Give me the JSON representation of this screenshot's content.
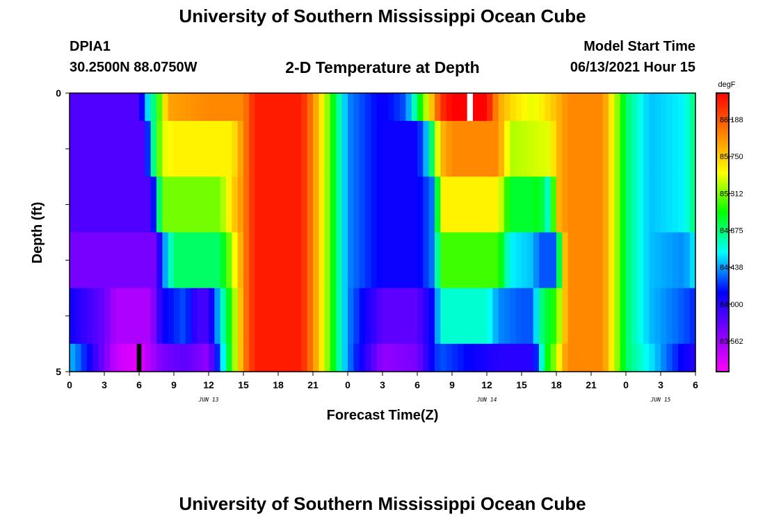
{
  "header": {
    "title_top": "University of Southern Mississippi Ocean Cube",
    "title_bottom": "University of Southern Mississippi Ocean Cube",
    "station_id": "DPIA1",
    "coordinates": "30.2500N  88.0750W",
    "model_start_label": "Model Start Time",
    "model_start_value": "06/13/2021 Hour 15"
  },
  "chart_data": {
    "type": "heatmap",
    "title": "2-D Temperature at Depth",
    "xlabel": "Forecast Time(Z)",
    "ylabel": "Depth (ft)",
    "xlim": [
      0,
      54
    ],
    "ylim": [
      0,
      5
    ],
    "x_ticks": [
      "0",
      "3",
      "6",
      "9",
      "12",
      "15",
      "18",
      "21",
      "0",
      "3",
      "6",
      "9",
      "12",
      "15",
      "18",
      "21",
      "0",
      "3",
      "6"
    ],
    "y_tick_labels": [
      "0",
      "5"
    ],
    "day_labels": [
      {
        "text": "JUN 13",
        "hour": 12
      },
      {
        "text": "JUN 14",
        "hour": 36
      },
      {
        "text": "JUN 15",
        "hour": 51
      }
    ],
    "colorbar": {
      "unit": "degF",
      "min": 83.2,
      "max": 86.5,
      "ticks": [
        "86.188",
        "85.750",
        "85.312",
        "84.875",
        "84.438",
        "84.000",
        "83.562"
      ],
      "colors": [
        "#ff00ff",
        "#8000ff",
        "#0000ff",
        "#00ffff",
        "#00ff00",
        "#ffff00",
        "#ff8000",
        "#ff0000"
      ]
    },
    "depth_rows": [
      {
        "depth_range": [
          0.0,
          0.5
        ],
        "series": [
          [
            0,
            83.85
          ],
          [
            6,
            83.85
          ],
          [
            6.5,
            84.4
          ],
          [
            7.5,
            85.0
          ],
          [
            8.5,
            85.9
          ],
          [
            12,
            86.0
          ],
          [
            15,
            86.0
          ],
          [
            16,
            86.4
          ],
          [
            20,
            86.4
          ],
          [
            21,
            86.0
          ],
          [
            22,
            85.5
          ],
          [
            23,
            84.9
          ],
          [
            24,
            84.4
          ],
          [
            27,
            84.1
          ],
          [
            29,
            84.3
          ],
          [
            30,
            84.9
          ],
          [
            31,
            85.6
          ],
          [
            32,
            86.3
          ],
          [
            33,
            86.5
          ],
          [
            36,
            86.5
          ],
          [
            37,
            85.9
          ],
          [
            38,
            85.7
          ],
          [
            40,
            85.5
          ],
          [
            42,
            85.8
          ],
          [
            43,
            86.0
          ],
          [
            46,
            86.0
          ],
          [
            47,
            85.5
          ],
          [
            48,
            84.9
          ],
          [
            50,
            84.5
          ],
          [
            53,
            84.6
          ],
          [
            54,
            84.9
          ]
        ]
      },
      {
        "depth_range": [
          0.5,
          1.5
        ],
        "series": [
          [
            0,
            83.85
          ],
          [
            6.5,
            83.85
          ],
          [
            7,
            84.6
          ],
          [
            8,
            85.5
          ],
          [
            9,
            85.6
          ],
          [
            14,
            85.6
          ],
          [
            15,
            86.0
          ],
          [
            16,
            86.4
          ],
          [
            20,
            86.4
          ],
          [
            21,
            86.0
          ],
          [
            22,
            85.5
          ],
          [
            23,
            84.9
          ],
          [
            24,
            84.4
          ],
          [
            27,
            84.1
          ],
          [
            30,
            84.1
          ],
          [
            31,
            84.6
          ],
          [
            32,
            85.8
          ],
          [
            33,
            86.0
          ],
          [
            37,
            86.0
          ],
          [
            38,
            85.4
          ],
          [
            41,
            85.5
          ],
          [
            41.5,
            85.5
          ],
          [
            42,
            85.8
          ],
          [
            43,
            86.0
          ],
          [
            46,
            86.0
          ],
          [
            47,
            85.5
          ],
          [
            48,
            84.9
          ],
          [
            50,
            84.5
          ],
          [
            53,
            84.6
          ],
          [
            54,
            84.9
          ]
        ]
      },
      {
        "depth_range": [
          1.5,
          2.5
        ],
        "series": [
          [
            0,
            83.85
          ],
          [
            7,
            83.85
          ],
          [
            7.5,
            84.5
          ],
          [
            8,
            85.3
          ],
          [
            13,
            85.3
          ],
          [
            14,
            85.7
          ],
          [
            15,
            86.0
          ],
          [
            16,
            86.4
          ],
          [
            20,
            86.4
          ],
          [
            21,
            86.0
          ],
          [
            22,
            85.5
          ],
          [
            23,
            84.9
          ],
          [
            24,
            84.4
          ],
          [
            27,
            84.1
          ],
          [
            30,
            84.1
          ],
          [
            31.5,
            84.4
          ],
          [
            32,
            85.6
          ],
          [
            37,
            85.6
          ],
          [
            38,
            85.0
          ],
          [
            40,
            85.0
          ],
          [
            40.5,
            85.1
          ],
          [
            41.5,
            84.6
          ],
          [
            42,
            85.8
          ],
          [
            43,
            86.0
          ],
          [
            46,
            86.0
          ],
          [
            47,
            85.5
          ],
          [
            48,
            84.9
          ],
          [
            50,
            84.5
          ],
          [
            53,
            84.6
          ],
          [
            54,
            84.9
          ]
        ]
      },
      {
        "depth_range": [
          2.5,
          3.5
        ],
        "series": [
          [
            0,
            83.7
          ],
          [
            7.5,
            83.7
          ],
          [
            8,
            84.3
          ],
          [
            9,
            84.9
          ],
          [
            13,
            84.9
          ],
          [
            14,
            85.4
          ],
          [
            15,
            86.0
          ],
          [
            16,
            86.4
          ],
          [
            20,
            86.4
          ],
          [
            21,
            86.0
          ],
          [
            22,
            85.5
          ],
          [
            23,
            84.9
          ],
          [
            24,
            84.4
          ],
          [
            27,
            84.1
          ],
          [
            30,
            84.1
          ],
          [
            31.5,
            84.4
          ],
          [
            32,
            85.2
          ],
          [
            37,
            85.2
          ],
          [
            38,
            84.6
          ],
          [
            40,
            84.5
          ],
          [
            40.5,
            84.3
          ],
          [
            42,
            84.3
          ],
          [
            42.5,
            85.6
          ],
          [
            43,
            86.0
          ],
          [
            46,
            86.0
          ],
          [
            47,
            85.5
          ],
          [
            48,
            84.9
          ],
          [
            50,
            84.5
          ],
          [
            53,
            84.4
          ],
          [
            54,
            84.6
          ]
        ]
      },
      {
        "depth_range": [
          3.5,
          4.5
        ],
        "series": [
          [
            0,
            84.1
          ],
          [
            3,
            83.75
          ],
          [
            4,
            83.5
          ],
          [
            7,
            83.5
          ],
          [
            8,
            84.1
          ],
          [
            10,
            84.3
          ],
          [
            11,
            83.9
          ],
          [
            12,
            83.9
          ],
          [
            13,
            84.6
          ],
          [
            14,
            85.2
          ],
          [
            15,
            86.0
          ],
          [
            16,
            86.4
          ],
          [
            20,
            86.4
          ],
          [
            21,
            86.0
          ],
          [
            22,
            85.5
          ],
          [
            23,
            84.9
          ],
          [
            24,
            84.4
          ],
          [
            27,
            83.8
          ],
          [
            30,
            83.8
          ],
          [
            31.5,
            84.2
          ],
          [
            32,
            84.7
          ],
          [
            36,
            84.7
          ],
          [
            37,
            84.4
          ],
          [
            39,
            84.3
          ],
          [
            40,
            84.3
          ],
          [
            40.5,
            84.8
          ],
          [
            42,
            85.2
          ],
          [
            42.5,
            85.6
          ],
          [
            43,
            86.0
          ],
          [
            46,
            86.0
          ],
          [
            47,
            85.5
          ],
          [
            48,
            84.9
          ],
          [
            50,
            84.5
          ],
          [
            53,
            84.3
          ],
          [
            54,
            84.2
          ]
        ]
      },
      {
        "depth_range": [
          4.5,
          5.0
        ],
        "series": [
          [
            0,
            84.5
          ],
          [
            1,
            84.3
          ],
          [
            3,
            83.7
          ],
          [
            4,
            83.4
          ],
          [
            6,
            83.3
          ],
          [
            8,
            83.7
          ],
          [
            10,
            83.8
          ],
          [
            12,
            83.6
          ],
          [
            13,
            84.4
          ],
          [
            14,
            85.2
          ],
          [
            15,
            86.0
          ],
          [
            16,
            86.4
          ],
          [
            20,
            86.4
          ],
          [
            21,
            86.0
          ],
          [
            22,
            85.5
          ],
          [
            23,
            84.9
          ],
          [
            24,
            84.4
          ],
          [
            27,
            83.6
          ],
          [
            30,
            83.7
          ],
          [
            31.5,
            84.2
          ],
          [
            32,
            84.3
          ],
          [
            35,
            84.1
          ],
          [
            37,
            84.0
          ],
          [
            40,
            84.0
          ],
          [
            40.5,
            84.4
          ],
          [
            41,
            85.0
          ],
          [
            42,
            85.4
          ],
          [
            42.5,
            85.8
          ],
          [
            43,
            86.0
          ],
          [
            46,
            86.0
          ],
          [
            47,
            85.5
          ],
          [
            48,
            84.9
          ],
          [
            50,
            84.6
          ],
          [
            53,
            84.1
          ],
          [
            54,
            84.0
          ]
        ]
      }
    ],
    "special_cells": [
      {
        "hour_range": [
          34.3,
          34.8
        ],
        "depth_range": [
          0.0,
          0.5
        ],
        "color": "#ffffff"
      },
      {
        "hour_range": [
          5.8,
          6.2
        ],
        "depth_range": [
          4.5,
          5.0
        ],
        "color": "#000000"
      }
    ]
  }
}
